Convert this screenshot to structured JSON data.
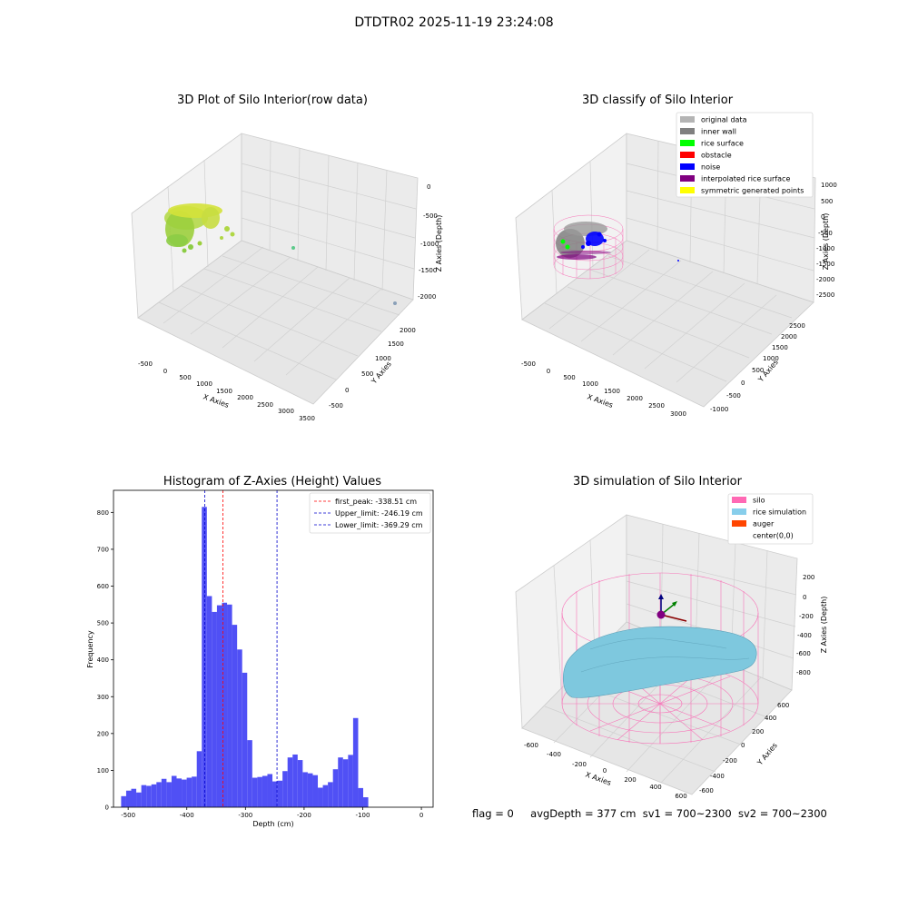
{
  "suptitle": "DTDTR02 2025-11-19 23:24:08",
  "status": {
    "flag": "flag = 0",
    "avg_depth": "avgDepth = 377 cm",
    "sv1": "sv1 = 700~2300",
    "sv2": "sv2 = 700~2300"
  },
  "colors": {
    "histogram_bar": "#5050f5",
    "first_peak_line": "#ff0000",
    "limit_lines": "#0000cc",
    "silo_wire": "#f774b8",
    "rice_surface": "#7ec8de"
  },
  "plot_raw": {
    "title": "3D Plot of Silo Interior(row data)",
    "xlabel": "X Axies",
    "ylabel": "Y Axies",
    "zlabel": "Z Axies (Depth)",
    "xticks": [
      "-500",
      "0",
      "500",
      "1000",
      "1500",
      "2000",
      "2500",
      "3000",
      "3500"
    ],
    "yticks": [
      "-500",
      "0",
      "500",
      "1000",
      "1500",
      "2000"
    ],
    "zticks": [
      "0",
      "-500",
      "-1000",
      "-1500",
      "-2000"
    ]
  },
  "plot_classify": {
    "title": "3D classify of Silo Interior",
    "xlabel": "X Axies",
    "ylabel": "Y Axies",
    "zlabel": "Z Axies (Depth)",
    "xticks": [
      "-500",
      "0",
      "500",
      "1000",
      "1500",
      "2000",
      "2500",
      "3000"
    ],
    "yticks": [
      "-1000",
      "-500",
      "0",
      "500",
      "1000",
      "1500",
      "2000",
      "2500"
    ],
    "zticks": [
      "1000",
      "500",
      "0",
      "-500",
      "-1000",
      "-1500",
      "-2000",
      "-2500"
    ],
    "legend": [
      {
        "label": "original data",
        "color": "#b4b4b4"
      },
      {
        "label": "inner wall",
        "color": "#808080"
      },
      {
        "label": "rice surface",
        "color": "#00ff00"
      },
      {
        "label": "obstacle",
        "color": "#ff0000"
      },
      {
        "label": "noise",
        "color": "#0000ff"
      },
      {
        "label": "interpolated rice surface",
        "color": "#800080"
      },
      {
        "label": "symmetric generated points",
        "color": "#ffff00"
      }
    ]
  },
  "plot_sim": {
    "title": "3D simulation of Silo Interior",
    "xlabel": "X Axies",
    "ylabel": "Y Axies",
    "zlabel": "Z Axies (Depth)",
    "xticks": [
      "-600",
      "-400",
      "-200",
      "0",
      "200",
      "400",
      "600"
    ],
    "yticks": [
      "-600",
      "-400",
      "-200",
      "0",
      "200",
      "400",
      "600"
    ],
    "zticks": [
      "200",
      "0",
      "-200",
      "-400",
      "-600",
      "-800"
    ],
    "legend": [
      {
        "label": "silo",
        "color": "#ff69b4"
      },
      {
        "label": "rice simulation",
        "color": "#87ceeb"
      },
      {
        "label": "auger",
        "color": "#ff4500"
      },
      {
        "label": "center(0,0)",
        "color": "#ffffff"
      }
    ]
  },
  "chart_data": {
    "type": "bar",
    "title": "Histogram of Z-Axies (Height) Values",
    "xlabel": "Depth (cm)",
    "ylabel": "Frequency",
    "xlim": [
      -525,
      20
    ],
    "ylim": [
      0,
      860
    ],
    "xticks": [
      -500,
      -400,
      -300,
      -200,
      -100,
      0
    ],
    "yticks": [
      0,
      100,
      200,
      300,
      400,
      500,
      600,
      700,
      800
    ],
    "bin_start": -512,
    "bin_width": 8.6,
    "values": [
      30,
      45,
      50,
      40,
      60,
      58,
      62,
      68,
      77,
      68,
      85,
      78,
      75,
      80,
      83,
      152,
      815,
      573,
      530,
      548,
      555,
      550,
      495,
      428,
      365,
      182,
      80,
      82,
      85,
      90,
      70,
      72,
      98,
      135,
      143,
      128,
      95,
      92,
      87,
      53,
      60,
      68,
      103,
      135,
      130,
      142,
      242,
      52,
      27
    ],
    "lines": [
      {
        "label": "first_peak: -338.51 cm",
        "x": -338.51,
        "color": "#ff0000"
      },
      {
        "label": "Upper_limit: -246.19 cm",
        "x": -246.19,
        "color": "#0000cc"
      },
      {
        "label": "Lower_limit: -369.29 cm",
        "x": -369.29,
        "color": "#0000cc"
      }
    ],
    "legend_position": "top-right",
    "grid": false
  }
}
